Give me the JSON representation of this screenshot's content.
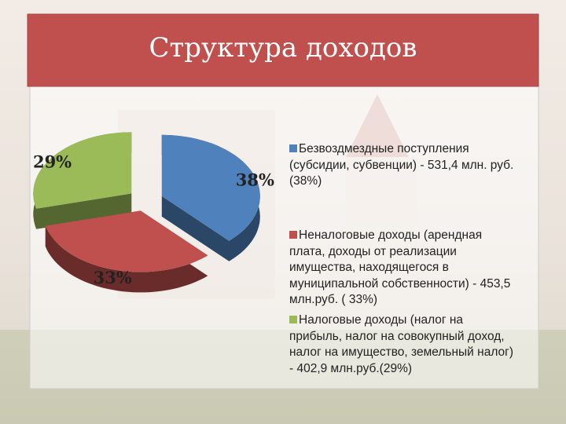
{
  "chart_data": {
    "type": "pie",
    "title": "Структура доходов",
    "categories": [
      "Безвоздмездные поступления (субсидии, субвенции) - 531,4 млн. руб. (38%)",
      "Неналоговые доходы (арендная плата, доходы от реализации имущества, находящегося в муниципальной собственности) - 453,5 млн.руб. ( 33%)",
      "Налоговые доходы (налог на прибыль, налог на совокупный доход, налог на имущество, земельный налог) - 402,9 млн.руб.(29%)"
    ],
    "values": [
      38,
      33,
      29
    ],
    "value_labels": [
      "38%",
      "33%",
      "29%"
    ],
    "colors": [
      "#4f81bd",
      "#c0504d",
      "#9bbb59"
    ]
  }
}
